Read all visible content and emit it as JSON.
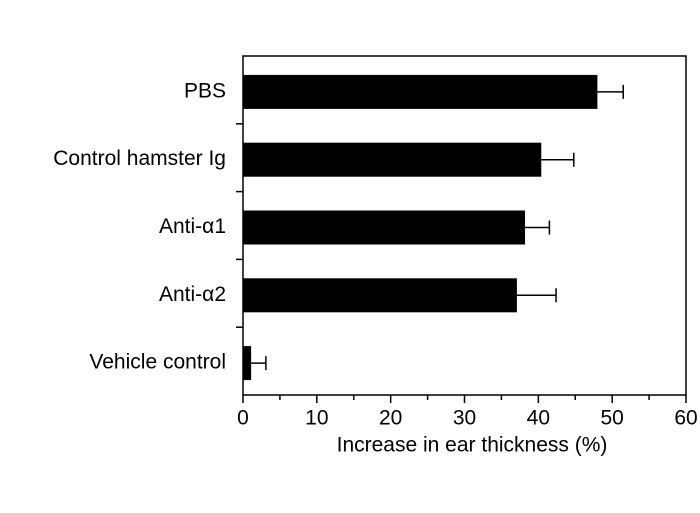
{
  "chart_data": {
    "type": "bar",
    "orientation": "horizontal",
    "x_label": "Increase in ear thickness (%)",
    "categories": [
      "PBS",
      "Control hamster Ig",
      "Anti-α1",
      "Anti-α2",
      "Vehicle control"
    ],
    "values": [
      48,
      40.4,
      38.2,
      37.1,
      1.1
    ],
    "errors": [
      3.5,
      4.4,
      3.3,
      5.3,
      2.0
    ],
    "color": "#000000",
    "xlim": [
      0,
      60
    ],
    "xticks": [
      0,
      10,
      20,
      30,
      40,
      50,
      60
    ],
    "minor_xticks": [
      5,
      15,
      25,
      35,
      45,
      55
    ]
  }
}
